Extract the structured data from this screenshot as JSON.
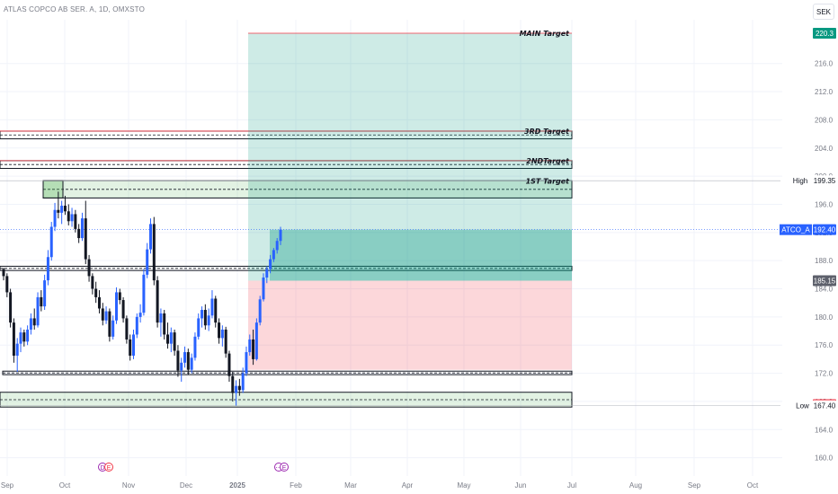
{
  "header": {
    "symbol_title": "ATLAS COPCO AB SER. A, 1D, OMXSTO",
    "currency": "SEK"
  },
  "chart_data": {
    "type": "candlestick",
    "title": "",
    "ylim": [
      159,
      222
    ],
    "y_ticks": [
      160.0,
      164.0,
      168.0,
      172.0,
      176.0,
      180.0,
      184.0,
      188.0,
      192.0,
      196.0,
      200.0,
      204.0,
      208.0,
      212.0,
      216.0
    ],
    "x_ticks": [
      "Sep",
      "Oct",
      "Nov",
      "Dec",
      "2025",
      "Feb",
      "Mar",
      "Apr",
      "May",
      "Jun",
      "Jul",
      "Aug",
      "Sep",
      "Oct"
    ],
    "price_badges": [
      {
        "label": "",
        "value": "220.3",
        "price": 220.3,
        "color": "#089981",
        "text_color": "#ffffff"
      },
      {
        "label": "High",
        "value": "199.35",
        "price": 199.35,
        "color": "#ffffff",
        "text_color": "#131722"
      },
      {
        "label": "ATCO_A",
        "value": "192.40",
        "price": 192.4,
        "color": "#2962ff",
        "text_color": "#ffffff"
      },
      {
        "label": "",
        "value": "185.15",
        "price": 185.15,
        "color": "#5d606b",
        "text_color": "#ffffff"
      },
      {
        "label": "",
        "value": "167.55",
        "price": 167.55,
        "color": "#f23645",
        "text_color": "#ffffff"
      },
      {
        "label": "Low",
        "value": "167.40",
        "price": 167.4,
        "color": "#ffffff",
        "text_color": "#131722"
      }
    ],
    "targets": [
      {
        "label": "MAIN Target",
        "price": 220.3
      },
      {
        "label": "3RD Target",
        "price": 205.9
      },
      {
        "label": "2NDTarget",
        "price": 201.7
      },
      {
        "label": "1ST Target",
        "price": 198.8
      }
    ],
    "zones": [
      {
        "name": "3rd-target-band",
        "top": 206.4,
        "bottom": 205.3,
        "type": "line"
      },
      {
        "name": "2nd-target-band",
        "top": 202.2,
        "bottom": 201.1,
        "type": "line"
      },
      {
        "name": "1st-target-zone",
        "top": 199.35,
        "bottom": 196.9,
        "type": "green"
      },
      {
        "name": "resistance-band",
        "top": 187.2,
        "bottom": 186.6,
        "type": "line"
      },
      {
        "name": "support-band",
        "top": 172.3,
        "bottom": 171.8,
        "type": "line"
      },
      {
        "name": "bottom-support-zone",
        "top": 169.3,
        "bottom": 167.2,
        "type": "green"
      }
    ],
    "position": {
      "entry": 185.15,
      "stop": 172.5,
      "target": 220.3,
      "current": 192.4
    },
    "candles": [
      {
        "o": 186.8,
        "h": 187.0,
        "l": 185.2,
        "c": 185.8
      },
      {
        "o": 185.8,
        "h": 186.2,
        "l": 182.8,
        "c": 183.5
      },
      {
        "o": 183.5,
        "h": 184.0,
        "l": 178.5,
        "c": 179.2
      },
      {
        "o": 179.2,
        "h": 179.8,
        "l": 173.5,
        "c": 174.5
      },
      {
        "o": 174.5,
        "h": 177.0,
        "l": 172.2,
        "c": 176.2
      },
      {
        "o": 176.2,
        "h": 178.5,
        "l": 175.0,
        "c": 177.8
      },
      {
        "o": 177.8,
        "h": 178.2,
        "l": 175.8,
        "c": 176.5
      },
      {
        "o": 176.5,
        "h": 178.8,
        "l": 176.0,
        "c": 178.2
      },
      {
        "o": 178.2,
        "h": 180.5,
        "l": 177.5,
        "c": 179.8
      },
      {
        "o": 179.8,
        "h": 181.2,
        "l": 178.2,
        "c": 178.8
      },
      {
        "o": 178.8,
        "h": 183.5,
        "l": 178.5,
        "c": 182.8
      },
      {
        "o": 182.8,
        "h": 183.8,
        "l": 180.8,
        "c": 181.5
      },
      {
        "o": 181.5,
        "h": 186.0,
        "l": 181.0,
        "c": 185.2
      },
      {
        "o": 185.2,
        "h": 189.5,
        "l": 184.5,
        "c": 188.5
      },
      {
        "o": 188.5,
        "h": 193.5,
        "l": 188.0,
        "c": 192.8
      },
      {
        "o": 192.8,
        "h": 196.2,
        "l": 192.2,
        "c": 195.2
      },
      {
        "o": 195.2,
        "h": 197.8,
        "l": 194.0,
        "c": 194.8
      },
      {
        "o": 194.8,
        "h": 196.5,
        "l": 193.2,
        "c": 195.8
      },
      {
        "o": 195.8,
        "h": 197.2,
        "l": 194.5,
        "c": 195.0
      },
      {
        "o": 195.0,
        "h": 196.0,
        "l": 193.0,
        "c": 193.6
      },
      {
        "o": 193.6,
        "h": 195.5,
        "l": 192.8,
        "c": 194.6
      },
      {
        "o": 194.6,
        "h": 195.2,
        "l": 192.0,
        "c": 192.5
      },
      {
        "o": 192.5,
        "h": 193.2,
        "l": 190.5,
        "c": 191.2
      },
      {
        "o": 191.2,
        "h": 194.8,
        "l": 190.8,
        "c": 194.0
      },
      {
        "o": 194.0,
        "h": 196.5,
        "l": 187.5,
        "c": 188.2
      },
      {
        "o": 188.2,
        "h": 188.8,
        "l": 185.0,
        "c": 185.8
      },
      {
        "o": 185.8,
        "h": 186.2,
        "l": 183.2,
        "c": 184.0
      },
      {
        "o": 184.0,
        "h": 185.0,
        "l": 182.0,
        "c": 182.8
      },
      {
        "o": 182.8,
        "h": 183.8,
        "l": 180.5,
        "c": 181.2
      },
      {
        "o": 181.2,
        "h": 182.0,
        "l": 178.8,
        "c": 179.5
      },
      {
        "o": 179.5,
        "h": 181.5,
        "l": 179.0,
        "c": 180.8
      },
      {
        "o": 180.8,
        "h": 181.2,
        "l": 176.5,
        "c": 177.2
      },
      {
        "o": 177.2,
        "h": 180.2,
        "l": 176.8,
        "c": 179.5
      },
      {
        "o": 179.5,
        "h": 184.2,
        "l": 179.0,
        "c": 183.5
      },
      {
        "o": 183.5,
        "h": 184.0,
        "l": 181.8,
        "c": 182.4
      },
      {
        "o": 182.4,
        "h": 182.8,
        "l": 179.2,
        "c": 179.8
      },
      {
        "o": 179.8,
        "h": 180.2,
        "l": 176.2,
        "c": 176.8
      },
      {
        "o": 176.8,
        "h": 177.5,
        "l": 173.8,
        "c": 174.5
      },
      {
        "o": 174.5,
        "h": 178.2,
        "l": 174.0,
        "c": 177.5
      },
      {
        "o": 177.5,
        "h": 180.5,
        "l": 177.0,
        "c": 180.0
      },
      {
        "o": 180.0,
        "h": 181.8,
        "l": 179.2,
        "c": 180.6
      },
      {
        "o": 180.6,
        "h": 186.8,
        "l": 180.2,
        "c": 186.0
      },
      {
        "o": 186.0,
        "h": 190.5,
        "l": 185.5,
        "c": 189.6
      },
      {
        "o": 189.6,
        "h": 194.0,
        "l": 189.0,
        "c": 193.2
      },
      {
        "o": 193.2,
        "h": 194.2,
        "l": 184.5,
        "c": 185.2
      },
      {
        "o": 185.2,
        "h": 185.8,
        "l": 178.5,
        "c": 179.2
      },
      {
        "o": 179.2,
        "h": 181.2,
        "l": 177.2,
        "c": 180.5
      },
      {
        "o": 180.5,
        "h": 181.0,
        "l": 176.8,
        "c": 177.5
      },
      {
        "o": 177.5,
        "h": 179.2,
        "l": 175.5,
        "c": 176.2
      },
      {
        "o": 176.2,
        "h": 178.5,
        "l": 175.0,
        "c": 177.8
      },
      {
        "o": 177.8,
        "h": 178.2,
        "l": 174.5,
        "c": 175.2
      },
      {
        "o": 175.2,
        "h": 176.0,
        "l": 171.5,
        "c": 172.4
      },
      {
        "o": 172.4,
        "h": 174.2,
        "l": 170.8,
        "c": 173.5
      },
      {
        "o": 173.5,
        "h": 175.8,
        "l": 172.8,
        "c": 175.0
      },
      {
        "o": 175.0,
        "h": 175.5,
        "l": 171.8,
        "c": 172.5
      },
      {
        "o": 172.5,
        "h": 174.8,
        "l": 172.0,
        "c": 174.2
      },
      {
        "o": 174.2,
        "h": 177.8,
        "l": 173.8,
        "c": 177.2
      },
      {
        "o": 177.2,
        "h": 180.5,
        "l": 176.8,
        "c": 179.8
      },
      {
        "o": 179.8,
        "h": 181.5,
        "l": 178.5,
        "c": 181.0
      },
      {
        "o": 181.0,
        "h": 181.8,
        "l": 178.2,
        "c": 178.8
      },
      {
        "o": 178.8,
        "h": 181.2,
        "l": 178.0,
        "c": 180.2
      },
      {
        "o": 180.2,
        "h": 183.8,
        "l": 179.8,
        "c": 182.6
      },
      {
        "o": 182.6,
        "h": 183.0,
        "l": 178.5,
        "c": 179.2
      },
      {
        "o": 179.2,
        "h": 179.8,
        "l": 176.2,
        "c": 177.0
      },
      {
        "o": 177.0,
        "h": 178.8,
        "l": 175.8,
        "c": 178.2
      },
      {
        "o": 178.2,
        "h": 178.6,
        "l": 174.2,
        "c": 174.8
      },
      {
        "o": 174.8,
        "h": 175.2,
        "l": 170.8,
        "c": 171.6
      },
      {
        "o": 171.6,
        "h": 172.2,
        "l": 168.0,
        "c": 169.2
      },
      {
        "o": 169.2,
        "h": 171.0,
        "l": 167.4,
        "c": 170.2
      },
      {
        "o": 170.2,
        "h": 171.2,
        "l": 168.8,
        "c": 169.6
      },
      {
        "o": 169.6,
        "h": 172.8,
        "l": 169.2,
        "c": 172.0
      },
      {
        "o": 172.0,
        "h": 175.8,
        "l": 171.6,
        "c": 175.0
      },
      {
        "o": 175.0,
        "h": 177.5,
        "l": 174.5,
        "c": 176.8
      },
      {
        "o": 176.8,
        "h": 178.2,
        "l": 173.2,
        "c": 174.0
      },
      {
        "o": 174.0,
        "h": 179.8,
        "l": 173.8,
        "c": 179.2
      },
      {
        "o": 179.2,
        "h": 183.0,
        "l": 178.8,
        "c": 182.5
      },
      {
        "o": 182.5,
        "h": 186.2,
        "l": 182.2,
        "c": 185.6
      },
      {
        "o": 185.6,
        "h": 187.2,
        "l": 184.8,
        "c": 186.8
      },
      {
        "o": 186.8,
        "h": 188.8,
        "l": 186.2,
        "c": 188.2
      },
      {
        "o": 188.2,
        "h": 189.8,
        "l": 187.8,
        "c": 189.5
      },
      {
        "o": 189.5,
        "h": 191.2,
        "l": 189.0,
        "c": 190.8
      },
      {
        "o": 190.8,
        "h": 192.8,
        "l": 190.2,
        "c": 192.4
      }
    ]
  }
}
